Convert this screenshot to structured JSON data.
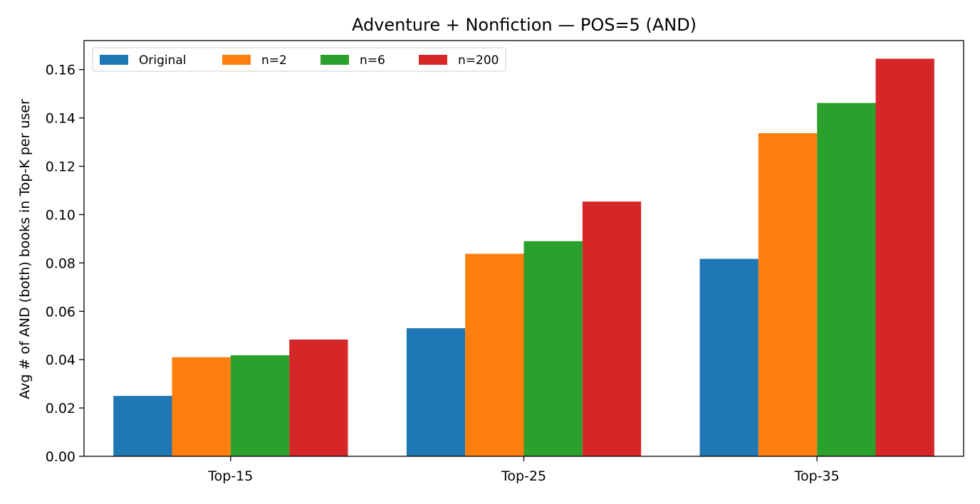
{
  "chart_data": {
    "type": "bar",
    "title": "Adventure + Nonfiction — POS=5 (AND)",
    "xlabel": "",
    "ylabel": "Avg # of AND (both) books in Top-K per user",
    "categories": [
      "Top-15",
      "Top-25",
      "Top-35"
    ],
    "ylim": [
      0,
      0.172
    ],
    "yticks": [
      0.0,
      0.02,
      0.04,
      0.06,
      0.08,
      0.1,
      0.12,
      0.14,
      0.16
    ],
    "ytick_labels": [
      "0.00",
      "0.02",
      "0.04",
      "0.06",
      "0.08",
      "0.10",
      "0.12",
      "0.14",
      "0.16"
    ],
    "grid": false,
    "legend_position": "top-left",
    "series": [
      {
        "name": "Original",
        "color": "#1f77b4",
        "values": [
          0.025,
          0.053,
          0.0817
        ]
      },
      {
        "name": "n=2",
        "color": "#ff7f0e",
        "values": [
          0.041,
          0.0838,
          0.1337
        ]
      },
      {
        "name": "n=6",
        "color": "#2ca02c",
        "values": [
          0.0418,
          0.089,
          0.1462
        ]
      },
      {
        "name": "n=200",
        "color": "#d62728",
        "values": [
          0.0483,
          0.1054,
          0.1645
        ]
      }
    ]
  }
}
